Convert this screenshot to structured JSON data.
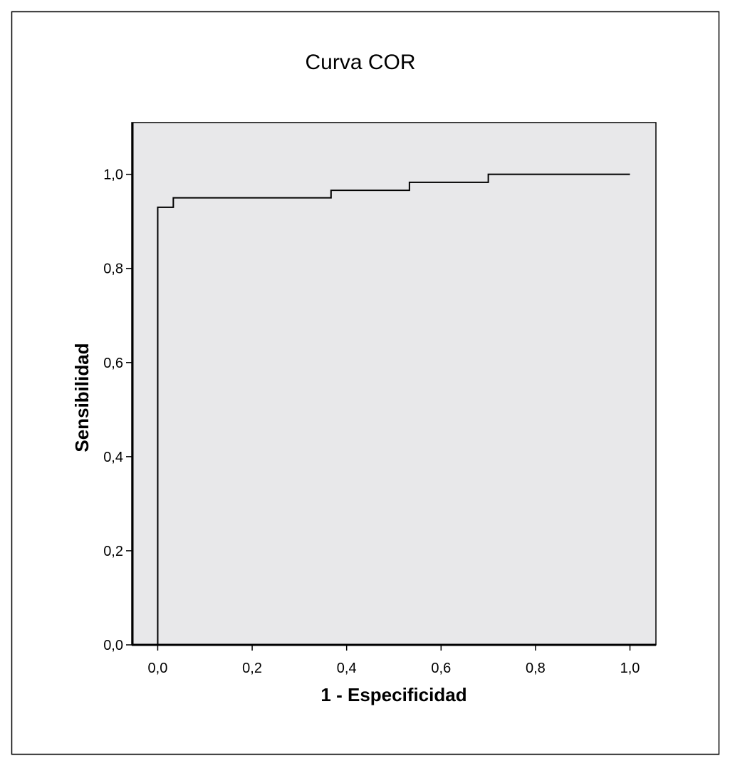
{
  "chart_data": {
    "type": "line",
    "title": "Curva COR",
    "xlabel": "1 - Especificidad",
    "ylabel": "Sensibilidad",
    "xlim": [
      -0.055,
      1.055
    ],
    "ylim": [
      0,
      1.11
    ],
    "x_ticks": [
      0,
      0.2,
      0.4,
      0.6,
      0.8,
      1.0
    ],
    "x_tick_labels": [
      "0,0",
      "0,2",
      "0,4",
      "0,6",
      "0,8",
      "1,0"
    ],
    "y_ticks": [
      0,
      0.2,
      0.4,
      0.6,
      0.8,
      1.0
    ],
    "y_tick_labels": [
      "0,0",
      "0,2",
      "0,4",
      "0,6",
      "0,8",
      "1,0"
    ],
    "grid": false,
    "series": [
      {
        "x": [
          0.0,
          0.0,
          0.033,
          0.033,
          0.367,
          0.367,
          0.533,
          0.533,
          0.7,
          0.7,
          1.0
        ],
        "y": [
          0.0,
          0.93,
          0.93,
          0.95,
          0.95,
          0.966,
          0.966,
          0.983,
          0.983,
          1.0,
          1.0
        ],
        "step": true
      }
    ],
    "colors": {
      "plot_background": "#e8e8ea",
      "line": "#000000",
      "frame": "#000000"
    }
  }
}
